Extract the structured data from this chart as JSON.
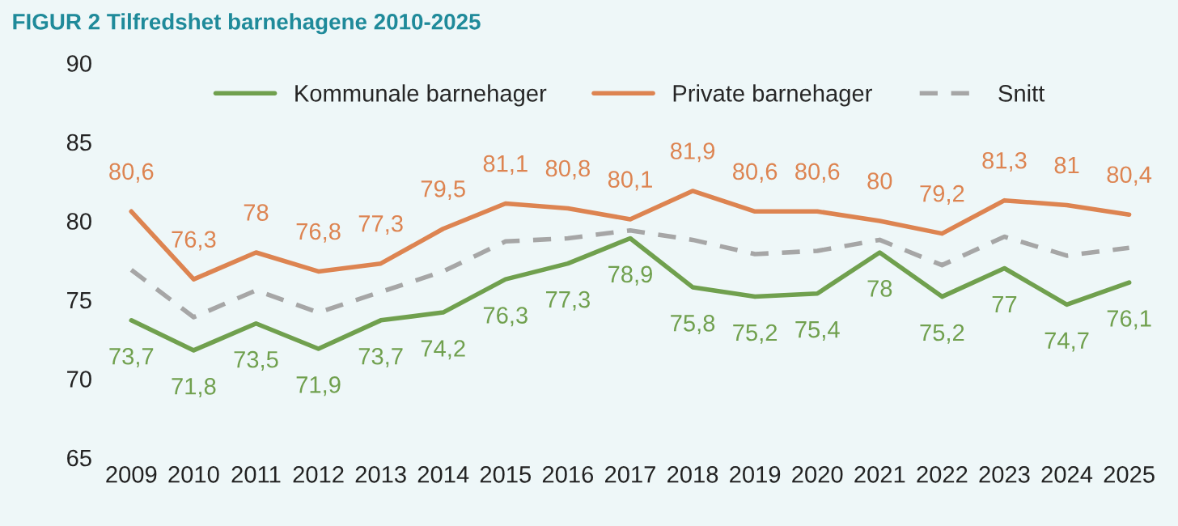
{
  "chart_data": {
    "type": "line",
    "title": "FIGUR 2 Tilfredshet barnehagene 2010-2025",
    "categories": [
      "2009",
      "2010",
      "2011",
      "2012",
      "2013",
      "2014",
      "2015",
      "2016",
      "2017",
      "2018",
      "2019",
      "2020",
      "2021",
      "2022",
      "2023",
      "2024",
      "2025"
    ],
    "series": [
      {
        "name": "Kommunale barnehager",
        "color": "#70a04e",
        "values": [
          73.7,
          71.8,
          73.5,
          71.9,
          73.7,
          74.2,
          76.3,
          77.3,
          78.9,
          75.8,
          75.2,
          75.4,
          78,
          75.2,
          77,
          74.7,
          76.1
        ],
        "value_labels": [
          "73,7",
          "71,8",
          "73,5",
          "71,9",
          "73,7",
          "74,2",
          "76,3",
          "77,3",
          "78,9",
          "75,8",
          "75,2",
          "75,4",
          "78",
          "75,2",
          "77",
          "74,7",
          "76,1"
        ]
      },
      {
        "name": "Private barnehager",
        "color": "#dd8451",
        "values": [
          80.6,
          76.3,
          78,
          76.8,
          77.3,
          79.5,
          81.1,
          80.8,
          80.1,
          81.9,
          80.6,
          80.6,
          80,
          79.2,
          81.3,
          81,
          80.4
        ],
        "value_labels": [
          "80,6",
          "76,3",
          "78",
          "76,8",
          "77,3",
          "79,5",
          "81,1",
          "80,8",
          "80,1",
          "81,9",
          "80,6",
          "80,6",
          "80",
          "79,2",
          "81,3",
          "81",
          "80,4"
        ]
      },
      {
        "name": "Snitt",
        "color": "#a6a6a6",
        "line_style": "dashed",
        "values": [
          76.9,
          73.9,
          75.6,
          74.2,
          75.5,
          76.8,
          78.7,
          78.9,
          79.4,
          78.8,
          77.9,
          78.1,
          78.8,
          77.2,
          79.0,
          77.8,
          78.3
        ]
      }
    ],
    "ylim": [
      65,
      90
    ],
    "yticks": [
      65,
      70,
      75,
      80,
      85,
      90
    ],
    "grid": false,
    "legend": "top",
    "marker": "none"
  }
}
